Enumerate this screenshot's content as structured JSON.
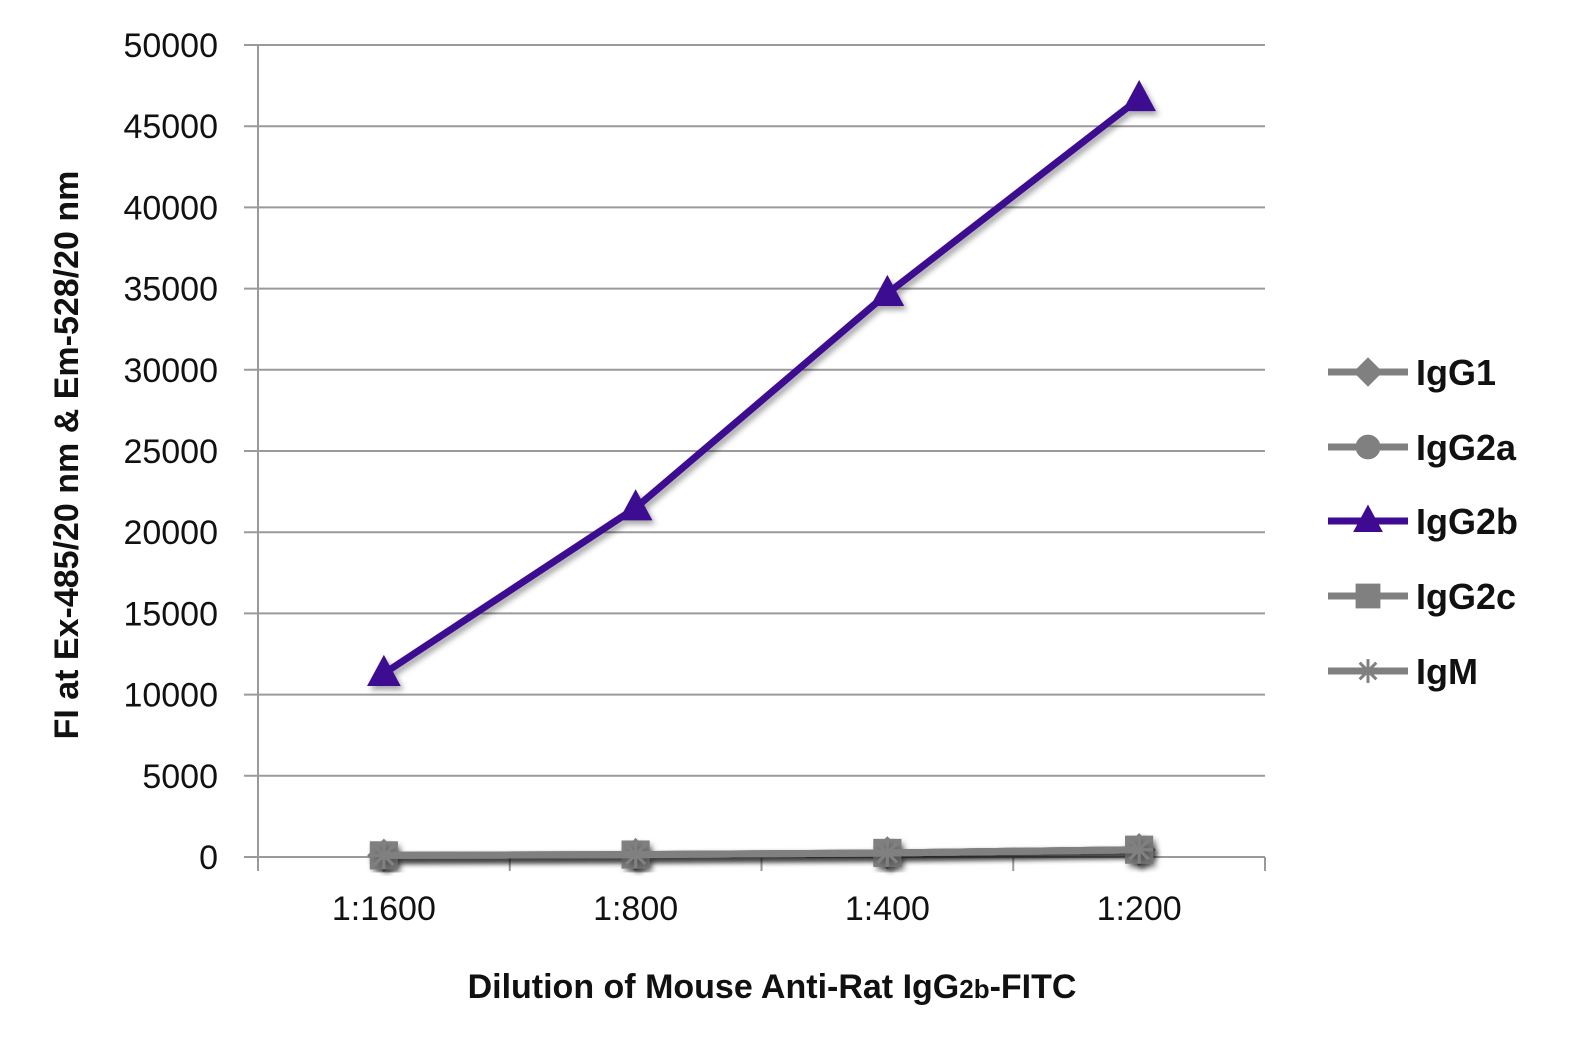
{
  "chart_data": {
    "type": "line",
    "title": "",
    "xlabel": "Dilution of Mouse Anti-Rat IgG2b-FITC",
    "xlabel_parts": {
      "prefix": "Dilution of Mouse Anti-Rat IgG",
      "subscript": "2b",
      "suffix": "-FITC"
    },
    "ylabel": "FI at Ex-485/20 nm & Em-528/20 nm",
    "categories": [
      "1:1600",
      "1:800",
      "1:400",
      "1:200"
    ],
    "ylim": [
      0,
      50000
    ],
    "yticks": [
      0,
      5000,
      10000,
      15000,
      20000,
      25000,
      30000,
      35000,
      40000,
      45000,
      50000
    ],
    "grid": true,
    "legend_position": "right",
    "series": [
      {
        "name": "IgG1",
        "values": [
          100,
          150,
          250,
          450
        ],
        "color": "#808080",
        "marker": "diamond"
      },
      {
        "name": "IgG2a",
        "values": [
          100,
          150,
          250,
          450
        ],
        "color": "#808080",
        "marker": "circle"
      },
      {
        "name": "IgG2b",
        "values": [
          11300,
          21500,
          34700,
          46700
        ],
        "color": "#3d0a91",
        "marker": "triangle"
      },
      {
        "name": "IgG2c",
        "values": [
          100,
          150,
          250,
          450
        ],
        "color": "#808080",
        "marker": "square"
      },
      {
        "name": "IgM",
        "values": [
          100,
          150,
          250,
          450
        ],
        "color": "#808080",
        "marker": "star"
      }
    ]
  }
}
